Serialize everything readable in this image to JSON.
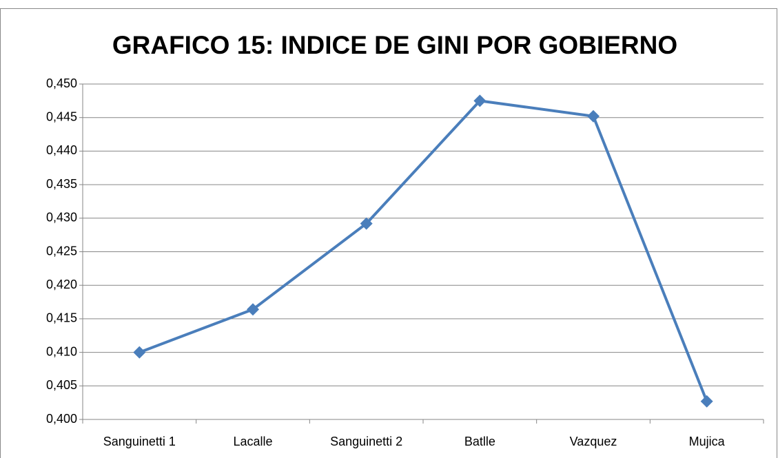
{
  "chart_data": {
    "type": "line",
    "title": "GRAFICO 15: INDICE DE GINI POR GOBIERNO",
    "categories": [
      "Sanguinetti 1",
      "Lacalle",
      "Sanguinetti 2",
      "Batlle",
      "Vazquez",
      "Mujica"
    ],
    "series": [
      {
        "color": "#4a7ebb",
        "values": [
          0.41,
          0.4164,
          0.4292,
          0.4475,
          0.4452,
          0.4027
        ]
      }
    ],
    "ylim": [
      0.4,
      0.45
    ],
    "yticks": [
      {
        "value": 0.4,
        "label": "0,400"
      },
      {
        "value": 0.405,
        "label": "0,405"
      },
      {
        "value": 0.41,
        "label": "0,410"
      },
      {
        "value": 0.415,
        "label": "0,415"
      },
      {
        "value": 0.42,
        "label": "0,420"
      },
      {
        "value": 0.425,
        "label": "0,425"
      },
      {
        "value": 0.43,
        "label": "0,430"
      },
      {
        "value": 0.435,
        "label": "0,435"
      },
      {
        "value": 0.44,
        "label": "0,440"
      },
      {
        "value": 0.445,
        "label": "0,445"
      },
      {
        "value": 0.45,
        "label": "0,450"
      }
    ],
    "grid": true
  }
}
